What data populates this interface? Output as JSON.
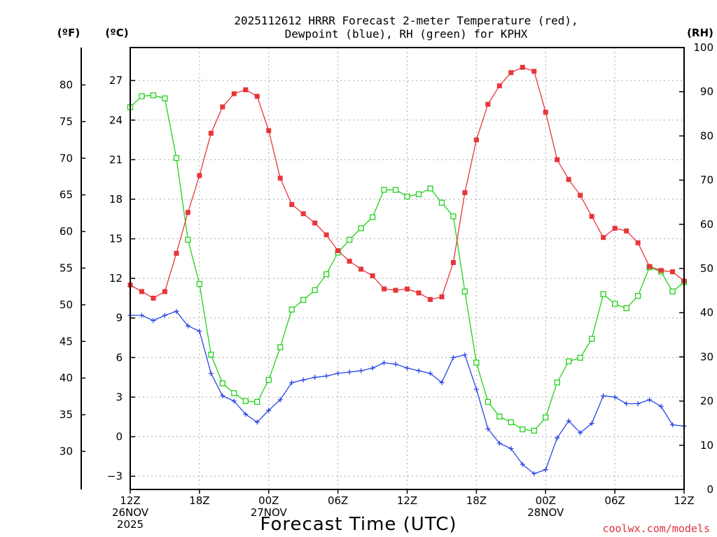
{
  "header": {
    "title_line1": "2025112612 HRRR Forecast 2-meter Temperature (red),",
    "title_line2": "Dewpoint (blue), RH (green) for KPHX"
  },
  "credit": "coolwx.com/models",
  "chart_data": {
    "type": "line",
    "xlabel": "Forecast Time (UTC)",
    "x_tick_labels": [
      {
        "hour": 0,
        "lines": [
          "12Z",
          "26NOV",
          "2025"
        ]
      },
      {
        "hour": 6,
        "lines": [
          "18Z"
        ]
      },
      {
        "hour": 12,
        "lines": [
          "00Z",
          "27NOV"
        ]
      },
      {
        "hour": 18,
        "lines": [
          "06Z"
        ]
      },
      {
        "hour": 24,
        "lines": [
          "12Z"
        ]
      },
      {
        "hour": 30,
        "lines": [
          "18Z"
        ]
      },
      {
        "hour": 36,
        "lines": [
          "00Z",
          "28NOV"
        ]
      },
      {
        "hour": 42,
        "lines": [
          "06Z"
        ]
      },
      {
        "hour": 48,
        "lines": [
          "12Z"
        ]
      }
    ],
    "xlim": [
      0,
      48
    ],
    "x_hours": [
      0,
      1,
      2,
      3,
      4,
      5,
      6,
      7,
      8,
      9,
      10,
      11,
      12,
      13,
      14,
      15,
      16,
      17,
      18,
      19,
      20,
      21,
      22,
      23,
      24,
      25,
      26,
      27,
      28,
      29,
      30,
      31,
      32,
      33,
      34,
      35,
      36,
      37,
      38,
      39,
      40,
      41,
      42,
      43,
      44,
      45,
      46,
      47,
      48
    ],
    "axes": {
      "left_f": {
        "unit_label": "(ºF)",
        "ticks": [
          30,
          35,
          40,
          45,
          50,
          55,
          60,
          65,
          70,
          75,
          80
        ]
      },
      "left_c": {
        "unit_label": "(ºC)",
        "ticks": [
          -3,
          0,
          3,
          6,
          9,
          12,
          15,
          18,
          21,
          24,
          27
        ],
        "ylim": [
          -4,
          29.5
        ]
      },
      "right_rh": {
        "unit_label": "(RH)",
        "ticks": [
          0,
          10,
          20,
          30,
          40,
          50,
          60,
          70,
          80,
          90,
          100
        ],
        "ylim": [
          0,
          100
        ]
      }
    },
    "grid": true,
    "series": [
      {
        "name": "2-meter Temperature",
        "axis": "left_c",
        "color": "#e8343a",
        "marker": "filled-square",
        "values": [
          11.5,
          11.0,
          10.5,
          11.0,
          13.9,
          17.0,
          19.8,
          23.0,
          25.0,
          26.0,
          26.3,
          25.8,
          23.2,
          19.6,
          17.6,
          16.9,
          16.2,
          15.3,
          14.1,
          13.3,
          12.7,
          12.2,
          11.2,
          11.1,
          11.2,
          10.9,
          10.4,
          10.6,
          13.2,
          18.5,
          22.5,
          25.2,
          26.6,
          27.6,
          28.0,
          27.7,
          24.6,
          21.0,
          19.5,
          18.3,
          16.7,
          15.1,
          15.8,
          15.6,
          14.7,
          12.9,
          12.6,
          12.5,
          11.8
        ]
      },
      {
        "name": "Dewpoint",
        "axis": "left_c",
        "color": "#2846e6",
        "marker": "plus",
        "values": [
          9.2,
          9.2,
          8.8,
          9.2,
          9.5,
          8.4,
          8.0,
          4.8,
          3.1,
          2.7,
          1.7,
          1.1,
          2.0,
          2.8,
          4.1,
          4.3,
          4.5,
          4.6,
          4.8,
          4.9,
          5.0,
          5.2,
          5.6,
          5.5,
          5.2,
          5.0,
          4.8,
          4.1,
          6.0,
          6.2,
          3.6,
          0.6,
          -0.5,
          -0.9,
          -2.1,
          -2.8,
          -2.5,
          -0.1,
          1.2,
          0.3,
          1.0,
          3.1,
          3.0,
          2.5,
          2.5,
          2.8,
          2.3,
          0.9,
          0.8
        ]
      },
      {
        "name": "RH",
        "axis": "right_rh",
        "color": "#22d01a",
        "marker": "open-square",
        "values": [
          86.5,
          89.0,
          89.2,
          88.5,
          75.0,
          56.5,
          46.5,
          30.5,
          24.0,
          21.8,
          20.0,
          19.8,
          24.8,
          32.2,
          40.7,
          42.9,
          45.1,
          48.7,
          53.6,
          56.5,
          59.1,
          61.6,
          67.8,
          67.8,
          66.3,
          66.8,
          68.1,
          64.9,
          61.8,
          44.8,
          28.7,
          19.8,
          16.5,
          15.2,
          13.6,
          13.3,
          16.3,
          24.2,
          29.0,
          29.8,
          34.1,
          44.2,
          42.0,
          41.0,
          43.8,
          50.3,
          49.3,
          44.8,
          46.9
        ]
      }
    ]
  }
}
